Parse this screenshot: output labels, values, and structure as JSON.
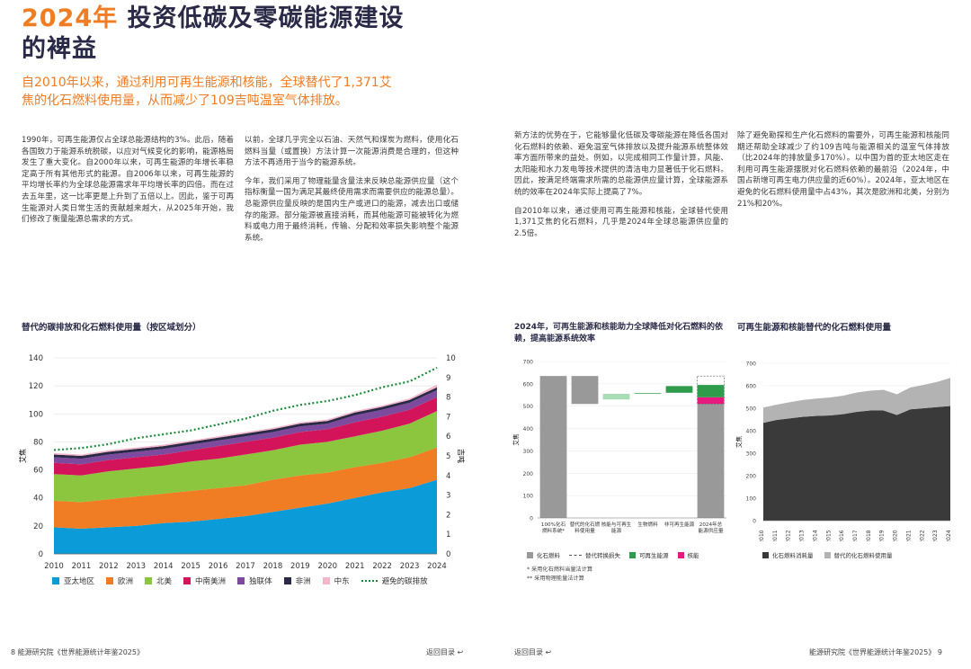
{
  "header": {
    "title_year": "2024年",
    "title_rest": "投资低碳及零碳能源建设",
    "title_line2": "的裨益",
    "subtitle": "自2010年以来，通过利用可再生能源和核能，全球替代了1,371艾焦的化石燃料使用量，从而减少了109吉吨温室气体排放。"
  },
  "body": {
    "col1": "1990年，可再生能源仅占全球总能源结构的3%。此后，随着各国致力于能源系统脱碳，以应对气候变化的影响，能源格局发生了重大变化。自2000年以来，可再生能源的年增长率稳定高于所有其他形式的能源。自2006年以来，可再生能源的平均增长率约为全球总能源需求年平均增长率的四倍。而在过去五年里，这一比率更是上升到了五倍以上。因此，鉴于可再生能源对人类日常生活的贡献越来越大，从2025年开始，我们修改了衡量能源总需求的方式。",
    "col2_p1": "以前，全球几乎完全以石油、天然气和煤炭为燃料，使用化石燃料当量（或置换）方法计算一次能源消费是合理的，但这种方法不再适用于当今的能源系统。",
    "col2_p2": "今年，我们采用了物理能量含量法来反映总能源供应量（这个指标衡量一国为满足其最终使用需求而需要供应的能源总量）。总能源供应量反映的是国内生产或进口的能源，减去出口或储存的能源。部分能源被直接消耗，而其他能源可能被转化为燃料或电力用于最终消耗，传输、分配和效率损失影响整个能源系统。",
    "col3_p1": "新方法的优势在于，它能够量化低碳及零碳能源在降低各国对化石燃料的依赖、避免温室气体排放以及提升能源系统整体效率方面所带来的益处。例如，以完成相同工作量计算，风能、太阳能和水力发电等技术提供的清洁电力显著低于化石燃料。因此，按满足终端需求所需的总能源供应量计算，全球能源系统的效率在2024年实际上提高了7%。",
    "col3_p2": "自2010年以来，通过使用可再生能源和核能，全球替代使用1,371艾焦的化石燃料，几乎是2024年全球总能源供应量的2.5倍。",
    "col4": "除了避免勘探和生产化石燃料的需要外，可再生能源和核能同期还帮助全球减少了约109吉吨与能源相关的温室气体排放（比2024年的排放量多170%）。以中国为首的亚太地区走在利用可再生能源摆脱对化石燃料依赖的最前沿（2024年，中国占新增可再生电力供应量的近60%）。2024年，亚太地区在避免的化石燃料使用量中占43%，其次是欧洲和北美，分别为21%和20%。"
  },
  "chart1": {
    "title": "替代的碳排放和化石燃料使用量（按区域划分）",
    "ylabel_left": "艾焦",
    "ylabel_right": "吉吨",
    "legend": [
      {
        "name": "亚太地区",
        "color": "#0a9bd8"
      },
      {
        "name": "欧洲",
        "color": "#f07c23"
      },
      {
        "name": "北美",
        "color": "#8cc63f"
      },
      {
        "name": "中南美洲",
        "color": "#d4145a"
      },
      {
        "name": "独联体",
        "color": "#7d4a9e"
      },
      {
        "name": "非洲",
        "color": "#2a2a48"
      },
      {
        "name": "中东",
        "color": "#f4b6c8"
      },
      {
        "name": "避免的碳排放",
        "color": "#1a8c3a"
      }
    ]
  },
  "chart2": {
    "title": "2024年，可再生能源和核能助力全球降低对化石燃料的依赖，提高能源系统效率",
    "ylabel": "艾焦",
    "legend": [
      {
        "name": "化石燃料",
        "color": "#999999"
      },
      {
        "name": "替代转换损失",
        "color": "#555555"
      },
      {
        "name": "可再生能源",
        "color": "#2e9c4a"
      },
      {
        "name": "核能",
        "color": "#e5197e"
      }
    ],
    "notes": [
      "* 采用化石燃料当量法计算",
      "** 采用物理能量法计算"
    ]
  },
  "chart3": {
    "title": "可再生能源和核能替代的化石燃料使用量",
    "legend": [
      {
        "name": "化石燃料消耗量",
        "color": "#3a3a3a"
      },
      {
        "name": "替代的化石燃料使用量",
        "color": "#b3b3b3"
      }
    ]
  },
  "chart_data": [
    {
      "type": "area",
      "title": "替代的碳排放和化石燃料使用量（按区域划分）",
      "x": [
        2010,
        2011,
        2012,
        2013,
        2014,
        2015,
        2016,
        2017,
        2018,
        2019,
        2020,
        2021,
        2022,
        2023,
        2024
      ],
      "ylim": [
        0,
        140
      ],
      "yticks": [
        0,
        20,
        40,
        60,
        80,
        100,
        120,
        140
      ],
      "y2lim": [
        0,
        10
      ],
      "y2ticks": [
        0,
        1,
        2,
        3,
        4,
        5,
        6,
        7,
        8,
        9,
        10
      ],
      "ylabel": "艾焦",
      "y2label": "吉吨",
      "stacked": true,
      "series": [
        {
          "name": "亚太地区",
          "color": "#0a9bd8",
          "values": [
            19,
            18,
            19,
            20,
            22,
            23,
            25,
            27,
            30,
            33,
            36,
            40,
            44,
            47,
            53
          ]
        },
        {
          "name": "欧洲",
          "color": "#f07c23",
          "values": [
            19,
            19,
            20,
            21,
            21,
            22,
            22,
            22,
            23,
            23,
            22,
            22,
            21,
            22,
            23
          ]
        },
        {
          "name": "北美",
          "color": "#8cc63f",
          "values": [
            19,
            19,
            20,
            20,
            20,
            21,
            21,
            22,
            21,
            22,
            22,
            22,
            23,
            24,
            26
          ]
        },
        {
          "name": "中南美洲",
          "color": "#d4145a",
          "values": [
            8,
            8,
            8,
            8,
            8,
            8,
            9,
            9,
            9,
            9,
            9,
            10,
            10,
            10,
            10
          ]
        },
        {
          "name": "独联体",
          "color": "#7d4a9e",
          "values": [
            4,
            4,
            4,
            4,
            4,
            4,
            4,
            4,
            4,
            4,
            4,
            5,
            5,
            5,
            5
          ]
        },
        {
          "name": "非洲",
          "color": "#2a2a48",
          "values": [
            2,
            2,
            2,
            2,
            2,
            2,
            2,
            2,
            2,
            2,
            2,
            2,
            2,
            2,
            2
          ]
        },
        {
          "name": "中东",
          "color": "#f4b6c8",
          "values": [
            1,
            1,
            1,
            1,
            1,
            1,
            1,
            1,
            1,
            1,
            1,
            1,
            1,
            1,
            2
          ]
        }
      ],
      "emissions": {
        "name": "避免的碳排放",
        "color": "#1a8c3a",
        "values": [
          5.3,
          5.4,
          5.6,
          5.9,
          6.1,
          6.3,
          6.6,
          6.9,
          7.3,
          7.6,
          7.8,
          8.1,
          8.5,
          8.8,
          9.5
        ]
      }
    },
    {
      "type": "bar",
      "title": "2024年，可再生能源和核能助力全球降低对化石燃料的依赖，提高能源系统效率",
      "ylim": [
        0,
        700
      ],
      "yticks": [
        0,
        100,
        200,
        300,
        400,
        500,
        600,
        700
      ],
      "ylabel": "艾焦",
      "categories": [
        "100%化石燃料系统*",
        "替代的化石燃料使用量",
        "核能与可再生能源",
        "生物燃料",
        "非可再生能源",
        "2024年总能源供应量"
      ],
      "bars": [
        {
          "base": 0,
          "value": 635,
          "color": "#999999"
        },
        {
          "base": 510,
          "value": 125,
          "color": "#999999"
        },
        {
          "base": 530,
          "value": 25,
          "color": "#a8dcb4"
        },
        {
          "base": 555,
          "value": 3,
          "color": "#2e9c4a"
        },
        {
          "base": 560,
          "value": 30,
          "color": "#2e9c4a"
        },
        {
          "base": 0,
          "value": 510,
          "color": "#999999",
          "stack": [
            {
              "value": 30,
              "color": "#e5197e"
            },
            {
              "value": 55,
              "color": "#2e9c4a"
            }
          ],
          "outline": 635
        }
      ]
    },
    {
      "type": "area",
      "title": "可再生能源和核能替代的化石燃料使用量",
      "x": [
        2010,
        2011,
        2012,
        2013,
        2014,
        2015,
        2016,
        2017,
        2018,
        2019,
        2020,
        2021,
        2022,
        2023,
        2024
      ],
      "ylim": [
        0,
        700
      ],
      "yticks": [
        0,
        100,
        200,
        300,
        400,
        500,
        600,
        700
      ],
      "ylabel": "艾焦",
      "stacked": true,
      "series": [
        {
          "name": "化石燃料消耗量",
          "color": "#3a3a3a",
          "values": [
            435,
            448,
            455,
            462,
            466,
            468,
            474,
            484,
            490,
            490,
            470,
            495,
            500,
            505,
            510
          ]
        },
        {
          "name": "替代的化石燃料使用量",
          "color": "#b3b3b3",
          "values": [
            68,
            68,
            72,
            75,
            77,
            80,
            82,
            86,
            88,
            92,
            92,
            97,
            104,
            112,
            125
          ]
        }
      ]
    }
  ],
  "footer": {
    "left": "8  能源研究院《世界能源统计年鉴2025》",
    "back": "返回目录 ↩",
    "right": "能源研究院《世界能源统计年鉴2025》  9"
  }
}
